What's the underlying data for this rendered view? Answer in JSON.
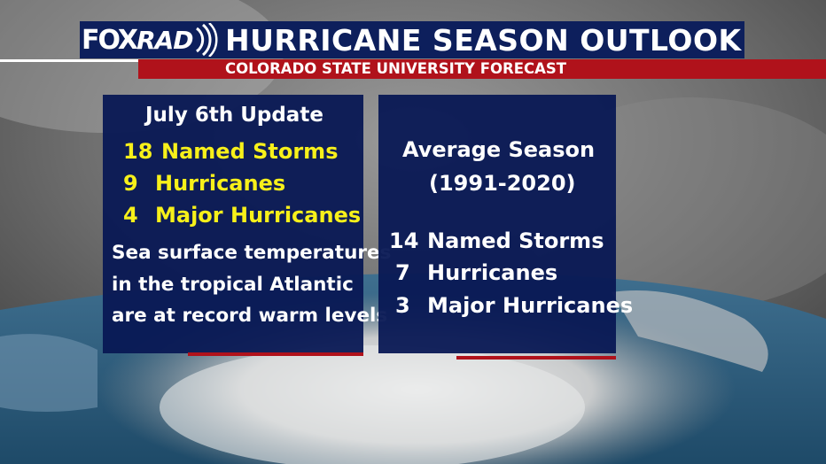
{
  "brand": {
    "logo_part1": "FOX",
    "logo_part2": "RAD"
  },
  "header": {
    "title": "HURRICANE SEASON OUTLOOK",
    "subtitle": "COLORADO STATE UNIVERSITY FORECAST"
  },
  "forecast_panel": {
    "heading": "July 6th Update",
    "stats": [
      {
        "value": "18",
        "label": "Named Storms"
      },
      {
        "value": "9",
        "label": "Hurricanes"
      },
      {
        "value": "4",
        "label": "Major Hurricanes"
      }
    ],
    "note_lines": [
      "Sea surface temperatures",
      "in the tropical Atlantic",
      "are at record warm levels"
    ]
  },
  "average_panel": {
    "heading_line1": "Average Season",
    "heading_line2": "(1991-2020)",
    "stats": [
      {
        "value": "14",
        "label": "Named Storms"
      },
      {
        "value": "7",
        "label": "Hurricanes"
      },
      {
        "value": "3",
        "label": "Major Hurricanes"
      }
    ]
  },
  "colors": {
    "navy": "#0d1f5c",
    "panel": "#08185a",
    "red": "#b0121b",
    "highlight_yellow": "#f7f01a"
  }
}
